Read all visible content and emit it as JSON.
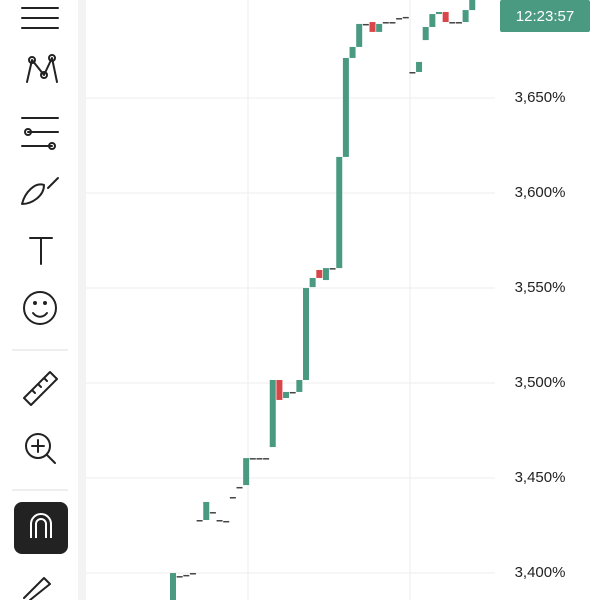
{
  "chart_data": {
    "type": "candlestick",
    "open": [
      3.3858,
      3.3984,
      3.399,
      3.4,
      3.4279,
      3.4279,
      3.4321,
      3.4279,
      3.4274,
      3.44,
      3.4453,
      3.4463,
      3.4605,
      3.4605,
      3.4605,
      3.4663,
      3.5016,
      3.4921,
      3.4953,
      3.4953,
      3.5016,
      3.5505,
      3.5595,
      3.5542,
      3.5605,
      3.5605,
      3.619,
      3.6711,
      3.6769,
      3.689,
      3.69,
      3.6848,
      3.69,
      3.69,
      3.6921,
      3.6927,
      3.6637,
      3.6637,
      3.6805,
      3.6874,
      3.6942,
      3.6953,
      3.69,
      3.69,
      3.69,
      3.6963
    ],
    "close": [
      3.4,
      3.3984,
      3.399,
      3.4,
      3.4279,
      3.4374,
      3.4321,
      3.4279,
      3.4274,
      3.44,
      3.4453,
      3.4605,
      3.4605,
      3.4605,
      3.4605,
      3.5016,
      3.4911,
      3.4953,
      3.4953,
      3.5016,
      3.55,
      3.5553,
      3.5553,
      3.5605,
      3.5605,
      3.619,
      3.6711,
      3.6769,
      3.689,
      3.689,
      3.6848,
      3.689,
      3.69,
      3.69,
      3.6921,
      3.6927,
      3.6637,
      3.669,
      3.6874,
      3.6942,
      3.6953,
      3.69,
      3.69,
      3.69,
      3.6963,
      3.7016
    ],
    "up_color": "#4a9a82",
    "down_color": "#d9464a",
    "ylim": [
      3.3858,
      3.7016
    ],
    "yticks": [
      {
        "value": 3.4,
        "label": "3,400%"
      },
      {
        "value": 3.45,
        "label": "3,450%"
      },
      {
        "value": 3.5,
        "label": "3,500%"
      },
      {
        "value": 3.55,
        "label": "3,550%"
      },
      {
        "value": 3.6,
        "label": "3,600%"
      },
      {
        "value": 3.65,
        "label": "3,650%"
      }
    ],
    "grid": true,
    "time_label": "12:23:57"
  }
}
